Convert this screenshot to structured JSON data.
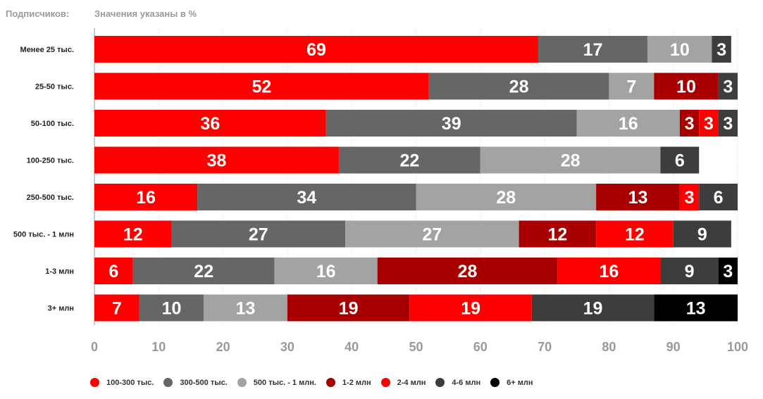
{
  "header": {
    "left_label": "Подписчиков:",
    "right_label": "Значения указаны в %"
  },
  "chart_data": {
    "type": "bar",
    "orientation": "horizontal",
    "stacked": true,
    "categories": [
      "Менее 25 тыс.",
      "25-50 тыс.",
      "50-100 тыс.",
      "100-250 тыс.",
      "250-500 тыс.",
      "500 тыс. - 1 млн",
      "1-3 млн",
      "3+ млн"
    ],
    "series": [
      {
        "name": "100-300 тыс.",
        "color": "#ff0000",
        "values": [
          69,
          52,
          36,
          38,
          16,
          12,
          6,
          7
        ]
      },
      {
        "name": "300-500 тыс.",
        "color": "#666666",
        "values": [
          17,
          28,
          39,
          22,
          34,
          27,
          22,
          10
        ]
      },
      {
        "name": "500 тыс. - 1 млн.",
        "color": "#a3a3a3",
        "values": [
          10,
          7,
          16,
          28,
          28,
          27,
          16,
          13
        ]
      },
      {
        "name": "1-2 млн",
        "color": "#a80000",
        "values": [
          0,
          10,
          3,
          0,
          13,
          12,
          28,
          19
        ]
      },
      {
        "name": "2-4 млн",
        "color": "#ff0000",
        "values": [
          0,
          0,
          3,
          0,
          3,
          12,
          16,
          19
        ]
      },
      {
        "name": "4-6 млн",
        "color": "#3d3d3d",
        "values": [
          3,
          3,
          3,
          6,
          6,
          9,
          9,
          19
        ]
      },
      {
        "name": "6+ млн",
        "color": "#000000",
        "values": [
          0,
          0,
          0,
          0,
          0,
          0,
          3,
          13
        ]
      }
    ],
    "x_ticks": [
      0,
      10,
      20,
      30,
      40,
      50,
      60,
      70,
      80,
      90,
      100
    ],
    "xlim": [
      0,
      100
    ],
    "grid": true,
    "legend_position": "bottom"
  }
}
